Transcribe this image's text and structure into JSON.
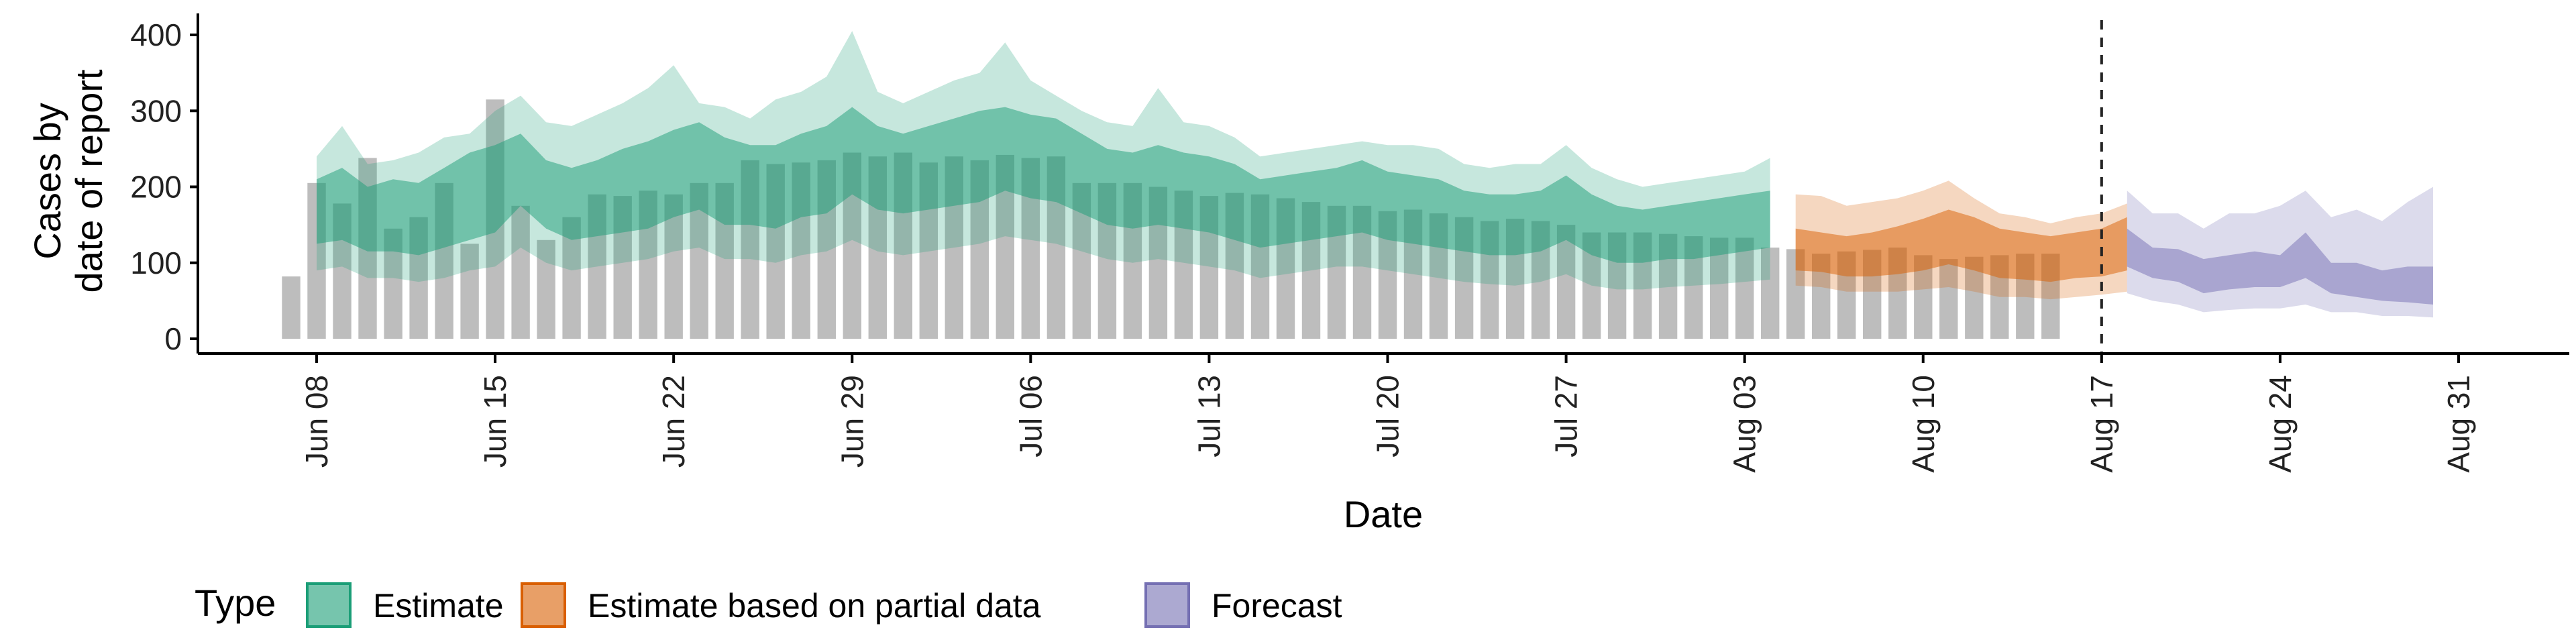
{
  "chart_data": {
    "type": "bar",
    "xlabel": "Date",
    "ylabel_lines": [
      "Cases by",
      "date of report"
    ],
    "ylim": [
      0,
      420
    ],
    "yticks": [
      0,
      100,
      200,
      300,
      400
    ],
    "x_tick_labels": [
      {
        "date": "2020-06-08",
        "label": "Jun 08"
      },
      {
        "date": "2020-06-15",
        "label": "Jun 15"
      },
      {
        "date": "2020-06-22",
        "label": "Jun 22"
      },
      {
        "date": "2020-06-29",
        "label": "Jun 29"
      },
      {
        "date": "2020-07-06",
        "label": "Jul 06"
      },
      {
        "date": "2020-07-13",
        "label": "Jul 13"
      },
      {
        "date": "2020-07-20",
        "label": "Jul 20"
      },
      {
        "date": "2020-07-27",
        "label": "Jul 27"
      },
      {
        "date": "2020-08-03",
        "label": "Aug 03"
      },
      {
        "date": "2020-08-10",
        "label": "Aug 10"
      },
      {
        "date": "2020-08-17",
        "label": "Aug 17"
      },
      {
        "date": "2020-08-24",
        "label": "Aug 24"
      },
      {
        "date": "2020-08-31",
        "label": "Aug 31"
      }
    ],
    "x_range": [
      "2020-06-01",
      "2020-09-03"
    ],
    "reference_line_date": "2020-08-17",
    "observed_cases": {
      "start_date": "2020-06-07",
      "values": [
        82,
        205,
        178,
        238,
        145,
        160,
        205,
        125,
        315,
        175,
        130,
        160,
        190,
        188,
        195,
        190,
        205,
        205,
        235,
        230,
        232,
        235,
        245,
        240,
        245,
        232,
        240,
        235,
        242,
        238,
        240,
        205,
        205,
        205,
        200,
        195,
        188,
        192,
        190,
        185,
        180,
        175,
        175,
        168,
        170,
        165,
        160,
        155,
        158,
        155,
        150,
        140,
        140,
        140,
        138,
        135,
        133,
        133,
        120,
        118,
        112,
        115,
        117,
        120,
        110,
        105,
        108,
        110,
        112,
        112
      ]
    },
    "series": [
      {
        "name": "Estimate",
        "color": "#1b9e77",
        "start_date": "2020-06-08",
        "median": [
          175,
          190,
          165,
          165,
          160,
          175,
          195,
          210,
          230,
          195,
          180,
          190,
          200,
          210,
          225,
          230,
          210,
          205,
          205,
          220,
          225,
          245,
          225,
          215,
          225,
          235,
          240,
          255,
          245,
          240,
          220,
          200,
          195,
          205,
          195,
          190,
          180,
          160,
          165,
          170,
          175,
          180,
          170,
          165,
          160,
          150,
          145,
          145,
          150,
          170,
          145,
          135,
          130,
          135,
          140,
          145,
          150,
          155
        ],
        "inner_low": [
          125,
          130,
          115,
          115,
          110,
          120,
          130,
          140,
          175,
          145,
          130,
          135,
          140,
          145,
          160,
          170,
          150,
          150,
          145,
          160,
          165,
          190,
          170,
          165,
          170,
          175,
          180,
          195,
          185,
          180,
          165,
          150,
          145,
          150,
          145,
          140,
          130,
          120,
          125,
          130,
          135,
          140,
          130,
          125,
          120,
          115,
          110,
          110,
          115,
          130,
          110,
          100,
          100,
          105,
          105,
          110,
          115,
          120
        ],
        "inner_high": [
          210,
          225,
          200,
          210,
          205,
          225,
          245,
          255,
          270,
          235,
          225,
          235,
          250,
          260,
          275,
          285,
          265,
          255,
          255,
          270,
          280,
          305,
          280,
          270,
          280,
          290,
          300,
          305,
          295,
          290,
          270,
          250,
          245,
          255,
          245,
          240,
          230,
          210,
          215,
          220,
          225,
          235,
          220,
          215,
          210,
          195,
          190,
          190,
          195,
          215,
          190,
          175,
          170,
          175,
          180,
          185,
          190,
          195
        ],
        "outer_low": [
          90,
          95,
          80,
          80,
          75,
          80,
          90,
          95,
          120,
          100,
          90,
          95,
          100,
          105,
          115,
          120,
          105,
          105,
          100,
          110,
          115,
          130,
          115,
          110,
          115,
          120,
          125,
          135,
          130,
          125,
          115,
          105,
          100,
          105,
          100,
          95,
          90,
          80,
          85,
          90,
          95,
          95,
          90,
          85,
          80,
          75,
          72,
          70,
          75,
          85,
          70,
          65,
          65,
          68,
          70,
          72,
          75,
          78
        ],
        "outer_high": [
          240,
          280,
          230,
          235,
          245,
          265,
          270,
          300,
          320,
          285,
          280,
          295,
          310,
          330,
          360,
          310,
          305,
          290,
          315,
          325,
          345,
          405,
          325,
          310,
          325,
          340,
          350,
          390,
          340,
          320,
          300,
          285,
          280,
          330,
          285,
          280,
          265,
          240,
          245,
          250,
          255,
          260,
          255,
          255,
          250,
          230,
          225,
          230,
          230,
          255,
          225,
          210,
          200,
          205,
          210,
          215,
          220,
          238
        ]
      },
      {
        "name": "Estimate based on partial data",
        "color": "#d95f02",
        "start_date": "2020-08-05",
        "median": [
          115,
          112,
          108,
          112,
          120,
          128,
          138,
          128,
          115,
          112,
          108,
          115,
          118,
          130
        ],
        "inner_low": [
          90,
          88,
          82,
          82,
          85,
          90,
          98,
          90,
          80,
          78,
          75,
          80,
          82,
          90
        ],
        "inner_high": [
          145,
          140,
          135,
          140,
          148,
          158,
          170,
          160,
          145,
          140,
          135,
          140,
          145,
          160
        ],
        "outer_low": [
          70,
          68,
          62,
          62,
          62,
          65,
          68,
          62,
          55,
          55,
          52,
          55,
          58,
          62
        ],
        "outer_high": [
          190,
          188,
          175,
          180,
          185,
          195,
          208,
          185,
          165,
          160,
          152,
          160,
          165,
          178
        ]
      },
      {
        "name": "Forecast",
        "color": "#7570b3",
        "start_date": "2020-08-18",
        "median": [
          120,
          105,
          100,
          85,
          90,
          95,
          95,
          110,
          85,
          80,
          75,
          80,
          75
        ],
        "inner_low": [
          95,
          80,
          75,
          60,
          65,
          68,
          68,
          80,
          60,
          55,
          50,
          48,
          45
        ],
        "inner_high": [
          145,
          120,
          118,
          105,
          110,
          115,
          110,
          140,
          100,
          100,
          90,
          95,
          95
        ],
        "outer_low": [
          60,
          50,
          45,
          35,
          38,
          40,
          40,
          45,
          35,
          35,
          30,
          30,
          28
        ],
        "outer_high": [
          195,
          165,
          165,
          145,
          165,
          165,
          175,
          195,
          160,
          170,
          155,
          180,
          200
        ]
      }
    ],
    "legend": {
      "title": "Type",
      "position": "bottom-left",
      "items": [
        "Estimate",
        "Estimate based on partial data",
        "Forecast"
      ]
    },
    "bar_color": "#bdbdbd",
    "grid": false
  }
}
